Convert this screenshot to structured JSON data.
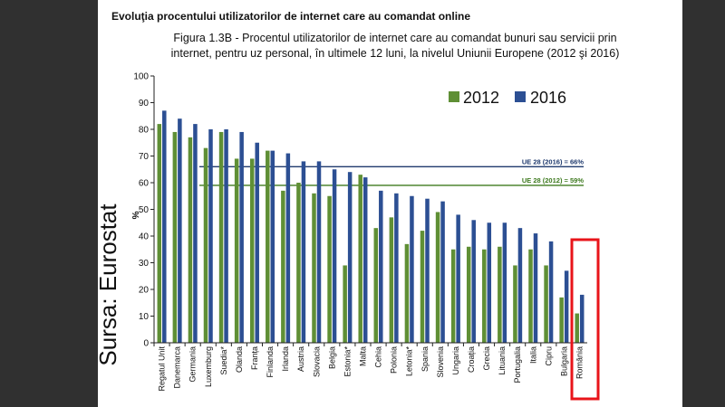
{
  "heading": "Evoluţia procentului utilizatorilor de internet care au comandat online",
  "caption_line1": "Figura 1.3B - Procentul utilizatorilor de internet care au comandat bunuri sau servicii prin",
  "caption_line2": "internet, pentru uz personal, în ultimele 12 luni, la nivelul Uniunii Europene (2012 şi 2016)",
  "source_text": "Sursa: Eurostat",
  "colors": {
    "series_2012": "#5f8f35",
    "series_2016": "#2c4f93",
    "ref_2016": "#1f3a6e",
    "ref_2012": "#3e7a1f",
    "highlight": "#e8141a",
    "window_bg": "#303030"
  },
  "chart_data": {
    "type": "bar",
    "title": "",
    "xlabel": "",
    "ylabel": "%",
    "ylim": [
      0,
      100
    ],
    "yticks": [
      0,
      10,
      20,
      30,
      40,
      50,
      60,
      70,
      80,
      90,
      100
    ],
    "legend_position": "top-right",
    "categories": [
      "Regatul Unit",
      "Danemarca",
      "Germania",
      "Luxemburg",
      "Suedia*",
      "Olanda",
      "Franța",
      "Finlanda",
      "Irlanda",
      "Austria",
      "Slovacia",
      "Belgia",
      "Estonia*",
      "Malta",
      "Cehia",
      "Polonia",
      "Letonia*",
      "Spania",
      "Slovenia",
      "Ungaria",
      "Croația",
      "Grecia",
      "Lituania",
      "Portugalia",
      "Italia",
      "Cipru",
      "Bulgaria",
      "România"
    ],
    "series": [
      {
        "name": "2012",
        "values": [
          82,
          79,
          77,
          73,
          79,
          69,
          69,
          72,
          57,
          60,
          56,
          55,
          29,
          63,
          43,
          47,
          37,
          42,
          49,
          35,
          36,
          35,
          36,
          29,
          35,
          29,
          17,
          11
        ]
      },
      {
        "name": "2016",
        "values": [
          87,
          84,
          82,
          80,
          80,
          79,
          75,
          72,
          71,
          68,
          68,
          65,
          64,
          62,
          57,
          56,
          55,
          54,
          53,
          48,
          46,
          45,
          45,
          43,
          41,
          38,
          27,
          18
        ]
      }
    ],
    "reference_lines": [
      {
        "label": "UE 28 (2016) = 66%",
        "value": 66
      },
      {
        "label": "UE 28 (2012) = 59%",
        "value": 59
      }
    ],
    "highlighted_category": "România"
  }
}
